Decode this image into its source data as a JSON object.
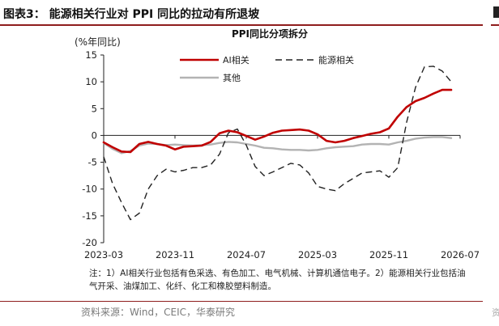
{
  "figure": {
    "title": "图表3：  能源相关行业对 PPI 同比的拉动有所退坡",
    "note": "注：1）AI相关行业包括有色采选、有色加工、电气机械、计算机通信电子。2）能源相关行业包括油气开采、油煤加工、化纤、化工和橡胶塑料制造。",
    "source": "资料来源：Wind，CEIC，华泰研究"
  },
  "chart_data": {
    "type": "line",
    "title": "PPI同比分项拆分",
    "ylabel": "(%年同比)",
    "xlabel": "",
    "ylim": [
      -20,
      15
    ],
    "yticks": [
      15,
      10,
      5,
      0,
      -5,
      -10,
      -15,
      -20
    ],
    "xlim": [
      "2023-03",
      "2026-07"
    ],
    "xtick_labels": [
      "2023-03",
      "2023-11",
      "2024-07",
      "2025-03",
      "2025-11",
      "2026-07"
    ],
    "legend_position": "top",
    "x": [
      "2023-03",
      "2023-04",
      "2023-05",
      "2023-06",
      "2023-07",
      "2023-08",
      "2023-09",
      "2023-10",
      "2023-11",
      "2023-12",
      "2024-01",
      "2024-02",
      "2024-03",
      "2024-04",
      "2024-05",
      "2024-06",
      "2024-07",
      "2024-08",
      "2024-09",
      "2024-10",
      "2024-11",
      "2024-12",
      "2025-01",
      "2025-02",
      "2025-03",
      "2025-04",
      "2025-05",
      "2025-06",
      "2025-07",
      "2025-08",
      "2025-09",
      "2025-10",
      "2025-11",
      "2025-12",
      "2026-01",
      "2026-02",
      "2026-03",
      "2026-04",
      "2026-05",
      "2026-06"
    ],
    "series": [
      {
        "name": "AI相关",
        "color": "#c00000",
        "style": "solid",
        "values": [
          -1.3,
          -2.2,
          -3.0,
          -3.1,
          -1.6,
          -1.2,
          -1.6,
          -1.9,
          -2.6,
          -2.1,
          -2.0,
          -1.9,
          -1.2,
          0.4,
          0.9,
          0.6,
          -0.1,
          -0.8,
          -0.2,
          0.5,
          0.9,
          1.0,
          1.1,
          0.9,
          0.2,
          -1.0,
          -1.3,
          -1.0,
          -0.5,
          -0.1,
          0.3,
          0.6,
          1.3,
          3.5,
          5.3,
          6.4,
          7.0,
          7.8,
          8.5,
          8.5
        ]
      },
      {
        "name": "能源相关",
        "color": "#222222",
        "style": "dashed",
        "values": [
          -4.0,
          -9.0,
          -12.5,
          -15.7,
          -14.5,
          -10.0,
          -7.5,
          -6.3,
          -6.8,
          -6.5,
          -6.0,
          -6.0,
          -5.5,
          -3.5,
          0.5,
          1.2,
          -1.8,
          -5.8,
          -7.5,
          -6.8,
          -6.0,
          -5.2,
          -5.5,
          -7.0,
          -9.5,
          -10.0,
          -10.3,
          -9.0,
          -8.0,
          -7.0,
          -6.8,
          -6.6,
          -7.8,
          -6.0,
          2.5,
          9.0,
          12.8,
          12.9,
          12.0,
          10.0
        ]
      },
      {
        "name": "其他",
        "color": "#b3b3b3",
        "style": "solid",
        "values": [
          -1.4,
          -2.5,
          -3.3,
          -2.9,
          -1.9,
          -1.5,
          -1.6,
          -1.8,
          -1.7,
          -1.8,
          -1.9,
          -1.8,
          -1.7,
          -1.4,
          -1.2,
          -1.3,
          -1.6,
          -1.9,
          -2.3,
          -2.4,
          -2.6,
          -2.7,
          -2.7,
          -2.8,
          -2.7,
          -2.4,
          -2.2,
          -2.1,
          -2.0,
          -1.7,
          -1.6,
          -1.6,
          -1.7,
          -1.3,
          -1.0,
          -0.6,
          -0.4,
          -0.3,
          -0.3,
          -0.5
        ]
      }
    ]
  }
}
